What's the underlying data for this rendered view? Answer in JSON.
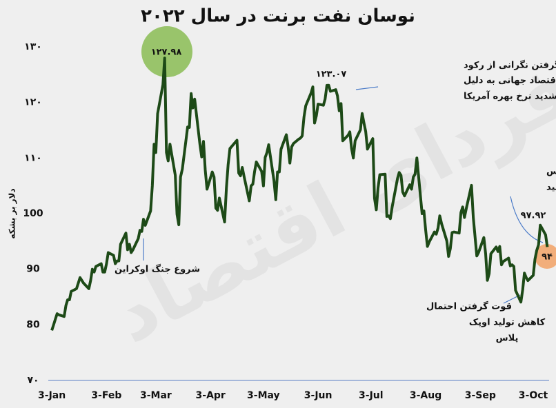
{
  "chart_data": {
    "type": "line",
    "title": "نوسان نفت برنت در سال ۲۰۲۲",
    "y_label": "دلار بر بشکه",
    "watermark": "فردای اقتصاد",
    "color": "#1d4a17",
    "ylim": [
      70,
      130
    ],
    "yticks": [
      {
        "value": 130,
        "label": "۱۳۰"
      },
      {
        "value": 120,
        "label": "۱۲۰"
      },
      {
        "value": 110,
        "label": "۱۱۰"
      },
      100,
      90,
      80,
      {
        "value": 70,
        "label": "۷۰"
      }
    ],
    "xlim": [
      "1-Jan",
      "12-Oct"
    ],
    "xticks": [
      "3-Jan",
      "3-Feb",
      "3-Mar",
      "3-Apr",
      "3-May",
      "3-Jun",
      "3-Jul",
      "3-Aug",
      "3-Sep",
      "3-Oct"
    ],
    "x": [
      "3-Jan",
      "4-Jan",
      "5-Jan",
      "6-Jan",
      "7-Jan",
      "10-Jan",
      "11-Jan",
      "12-Jan",
      "13-Jan",
      "14-Jan",
      "17-Jan",
      "18-Jan",
      "19-Jan",
      "20-Jan",
      "21-Jan",
      "24-Jan",
      "25-Jan",
      "26-Jan",
      "27-Jan",
      "28-Jan",
      "31-Jan",
      "1-Feb",
      "2-Feb",
      "3-Feb",
      "4-Feb",
      "7-Feb",
      "8-Feb",
      "9-Feb",
      "10-Feb",
      "11-Feb",
      "14-Feb",
      "15-Feb",
      "16-Feb",
      "17-Feb",
      "18-Feb",
      "21-Feb",
      "22-Feb",
      "23-Feb",
      "24-Feb",
      "25-Feb",
      "28-Feb",
      "1-Mar",
      "2-Mar",
      "3-Mar",
      "4-Mar",
      "7-Mar",
      "8-Mar",
      "9-Mar",
      "10-Mar",
      "11-Mar",
      "14-Mar",
      "15-Mar",
      "16-Mar",
      "17-Mar",
      "18-Mar",
      "21-Mar",
      "22-Mar",
      "23-Mar",
      "24-Mar",
      "25-Mar",
      "28-Mar",
      "29-Mar",
      "30-Mar",
      "31-Mar",
      "1-Apr",
      "4-Apr",
      "5-Apr",
      "6-Apr",
      "7-Apr",
      "8-Apr",
      "11-Apr",
      "12-Apr",
      "13-Apr",
      "14-Apr",
      "18-Apr",
      "19-Apr",
      "20-Apr",
      "21-Apr",
      "22-Apr",
      "25-Apr",
      "26-Apr",
      "27-Apr",
      "28-Apr",
      "29-Apr",
      "2-May",
      "3-May",
      "4-May",
      "5-May",
      "6-May",
      "9-May",
      "10-May",
      "11-May",
      "12-May",
      "13-May",
      "16-May",
      "17-May",
      "18-May",
      "19-May",
      "20-May",
      "23-May",
      "24-May",
      "25-May",
      "26-May",
      "27-May",
      "30-May",
      "31-May",
      "1-Jun",
      "2-Jun",
      "3-Jun",
      "6-Jun",
      "7-Jun",
      "8-Jun",
      "9-Jun",
      "10-Jun",
      "13-Jun",
      "14-Jun",
      "15-Jun",
      "16-Jun",
      "17-Jun",
      "20-Jun",
      "21-Jun",
      "22-Jun",
      "23-Jun",
      "24-Jun",
      "27-Jun",
      "28-Jun",
      "29-Jun",
      "30-Jun",
      "1-Jul",
      "4-Jul",
      "5-Jul",
      "6-Jul",
      "7-Jul",
      "8-Jul",
      "11-Jul",
      "12-Jul",
      "13-Jul",
      "14-Jul",
      "15-Jul",
      "18-Jul",
      "19-Jul",
      "20-Jul",
      "21-Jul",
      "22-Jul",
      "25-Jul",
      "26-Jul",
      "27-Jul",
      "28-Jul",
      "29-Jul",
      "1-Aug",
      "2-Aug",
      "3-Aug",
      "4-Aug",
      "5-Aug",
      "8-Aug",
      "9-Aug",
      "10-Aug",
      "11-Aug",
      "12-Aug",
      "15-Aug",
      "16-Aug",
      "17-Aug",
      "18-Aug",
      "19-Aug",
      "22-Aug",
      "23-Aug",
      "24-Aug",
      "25-Aug",
      "26-Aug",
      "29-Aug",
      "30-Aug",
      "1-Sep",
      "2-Sep",
      "5-Sep",
      "6-Sep",
      "7-Sep",
      "8-Sep",
      "9-Sep",
      "12-Sep",
      "13-Sep",
      "14-Sep",
      "15-Sep",
      "16-Sep",
      "19-Sep",
      "20-Sep",
      "21-Sep",
      "22-Sep",
      "23-Sep",
      "26-Sep",
      "27-Sep",
      "28-Sep",
      "29-Sep",
      "30-Sep",
      "3-Oct",
      "4-Oct",
      "5-Oct",
      "6-Oct",
      "7-Oct",
      "10-Oct",
      "11-Oct"
    ],
    "values": [
      79,
      80,
      81,
      82,
      81.8,
      81.5,
      83.5,
      84.5,
      84.5,
      86,
      86.5,
      87.5,
      88.5,
      88,
      87.5,
      86.5,
      88,
      90,
      89.5,
      90.5,
      91,
      89.5,
      89.5,
      91,
      93,
      92.5,
      91,
      91.5,
      91.5,
      94.5,
      96.5,
      93.5,
      94.5,
      93,
      93.5,
      95.5,
      97,
      96.8,
      99,
      97.9,
      100.5,
      105,
      112.5,
      111,
      118,
      123.2,
      127.98,
      111,
      109.5,
      112.5,
      106.9,
      99.9,
      98,
      106.6,
      108,
      115.6,
      115.5,
      121.6,
      119,
      120.6,
      112.5,
      110.2,
      113,
      107.9,
      104.4,
      107.5,
      106.6,
      101,
      100.6,
      102.8,
      98.5,
      104.6,
      108.8,
      111.7,
      113.2,
      107.3,
      106.8,
      108.3,
      106.7,
      102.3,
      105,
      105.3,
      107.6,
      109.3,
      107.6,
      105,
      110.1,
      111,
      112.4,
      105.9,
      102.5,
      107.5,
      107.5,
      111.6,
      114.2,
      112,
      109.1,
      112,
      112.6,
      113.4,
      113.6,
      114,
      117.4,
      119.4,
      121.7,
      122.8,
      116.3,
      117.6,
      119.7,
      119.5,
      120.6,
      123.07,
      123.1,
      122,
      122.3,
      121.2,
      118.5,
      119.8,
      113.1,
      114.1,
      114.7,
      111.7,
      110,
      113.1,
      115.1,
      118,
      116.3,
      114.8,
      111.6,
      113.5,
      102.8,
      100.7,
      104.6,
      107,
      107.1,
      99.5,
      99.6,
      99.1,
      101.2,
      106.3,
      107.4,
      106.9,
      103.9,
      103.2,
      105.2,
      104.4,
      106.6,
      107.1,
      110,
      100,
      100.5,
      97,
      94.1,
      94.9,
      96.7,
      96.3,
      97.4,
      99.6,
      98.2,
      95.1,
      92.3,
      93.7,
      96.6,
      96.7,
      96.5,
      100.2,
      101.2,
      99.3,
      100.9,
      105.1,
      99.3,
      92.4,
      93,
      95.7,
      92.8,
      88,
      89.2,
      92.8,
      94,
      93.2,
      94.1,
      90.8,
      91.4,
      92,
      90.6,
      90.8,
      90.5,
      86.2,
      84.1,
      86.3,
      89.3,
      88.5,
      87.96,
      88.9,
      91.8,
      93.4,
      94.4,
      97.92,
      96.2,
      94
    ],
    "annotations": [
      "۱۲۷.۹۸",
      "۱۲۳.۰۷",
      [
        "شدت گرفتن نگرانی از رکود",
        "اقتصاد جهانی به دلیل",
        "افزایش شدید نرخ بهره آمریکا"
      ],
      "شروع جنگ اوکراین",
      [
        "تصمیم اوپک‌پلاس",
        "برای کاهش تولید"
      ],
      "۹۷.۹۲",
      "۹۴",
      [
        "قوت گرفتن احتمال",
        "کاهش تولید اوپک",
        "پلاس"
      ]
    ]
  }
}
